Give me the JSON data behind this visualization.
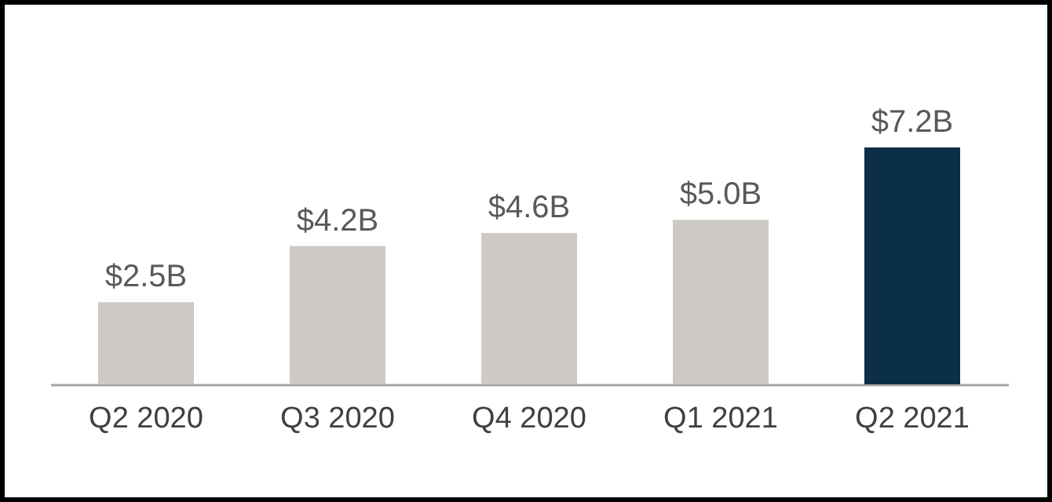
{
  "chart_data": {
    "type": "bar",
    "categories": [
      "Q2 2020",
      "Q3 2020",
      "Q4 2020",
      "Q1 2021",
      "Q2 2021"
    ],
    "values": [
      2.5,
      4.2,
      4.6,
      5.0,
      7.2
    ],
    "colors": [
      "#cdcac5",
      "#cdcac5",
      "#cdcac5",
      "#cdcac5",
      "#0b2f48"
    ],
    "value_labels": [
      "$2.5B",
      "$4.2B",
      "$4.6B",
      "$5.0B",
      "$7.2B"
    ],
    "tick_labels": "x"
  }
}
